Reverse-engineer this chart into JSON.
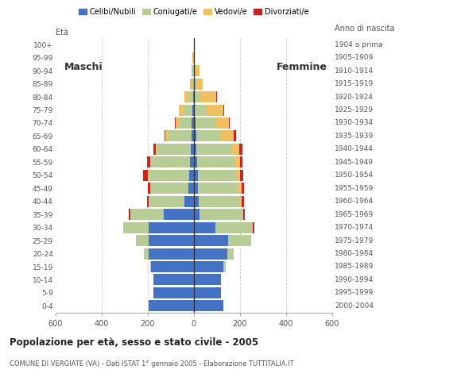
{
  "age_groups": [
    "0-4",
    "5-9",
    "10-14",
    "15-19",
    "20-24",
    "25-29",
    "30-34",
    "35-39",
    "40-44",
    "45-49",
    "50-54",
    "55-59",
    "60-64",
    "65-69",
    "70-74",
    "75-79",
    "80-84",
    "85-89",
    "90-94",
    "95-99",
    "100+"
  ],
  "birth_years": [
    "2000-2004",
    "1995-1999",
    "1990-1994",
    "1985-1989",
    "1980-1984",
    "1975-1979",
    "1970-1974",
    "1965-1969",
    "1960-1964",
    "1955-1959",
    "1950-1954",
    "1945-1949",
    "1940-1944",
    "1935-1939",
    "1930-1934",
    "1925-1929",
    "1920-1924",
    "1915-1919",
    "1910-1914",
    "1905-1909",
    "1904 o prima"
  ],
  "males": {
    "celibi": [
      195,
      175,
      175,
      185,
      195,
      195,
      195,
      130,
      40,
      22,
      18,
      15,
      12,
      10,
      8,
      5,
      2,
      0,
      0,
      0,
      0
    ],
    "coniugati": [
      0,
      0,
      0,
      5,
      20,
      55,
      110,
      145,
      155,
      165,
      175,
      170,
      145,
      100,
      55,
      35,
      18,
      8,
      5,
      2,
      0
    ],
    "vedovi": [
      0,
      0,
      0,
      0,
      0,
      0,
      0,
      0,
      0,
      0,
      5,
      5,
      8,
      12,
      15,
      25,
      20,
      8,
      5,
      2,
      0
    ],
    "divorziati": [
      0,
      0,
      0,
      0,
      0,
      0,
      0,
      8,
      8,
      12,
      20,
      12,
      8,
      5,
      2,
      0,
      0,
      0,
      0,
      0,
      0
    ]
  },
  "females": {
    "nubili": [
      130,
      120,
      120,
      130,
      145,
      150,
      95,
      25,
      22,
      20,
      18,
      15,
      12,
      10,
      8,
      5,
      4,
      2,
      2,
      0,
      0
    ],
    "coniugate": [
      0,
      0,
      0,
      10,
      30,
      100,
      160,
      190,
      175,
      175,
      170,
      165,
      150,
      110,
      85,
      50,
      20,
      8,
      5,
      0,
      0
    ],
    "vedove": [
      0,
      0,
      0,
      0,
      0,
      0,
      0,
      0,
      10,
      12,
      15,
      20,
      35,
      55,
      60,
      75,
      75,
      30,
      20,
      5,
      2
    ],
    "divorziate": [
      0,
      0,
      0,
      0,
      0,
      0,
      8,
      8,
      10,
      12,
      12,
      12,
      15,
      8,
      5,
      2,
      2,
      0,
      0,
      0,
      0
    ]
  },
  "colors": {
    "celibi_nubili": "#4472C4",
    "coniugati": "#B8CC96",
    "vedovi": "#F0C060",
    "divorziati": "#CC2222"
  },
  "title": "Popolazione per età, sesso e stato civile - 2005",
  "subtitle": "COMUNE DI VERGIATE (VA) - Dati ISTAT 1° gennaio 2005 - Elaborazione TUTTITALIA.IT",
  "label_maschi": "Maschi",
  "label_femmine": "Femmine",
  "legend_labels": [
    "Celibi/Nubili",
    "Coniugati/e",
    "Vedovi/e",
    "Divorziati/e"
  ],
  "xlim": 600,
  "bg_color": "#ffffff",
  "grid_color": "#aaaaaa",
  "bar_height": 0.85
}
